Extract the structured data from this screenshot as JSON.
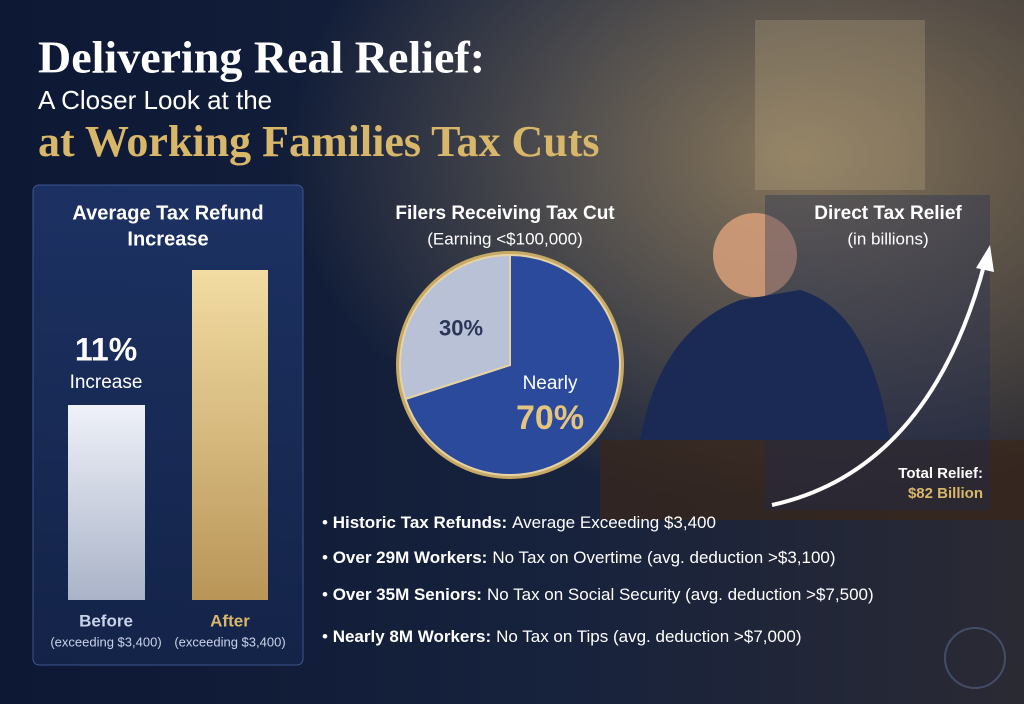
{
  "header": {
    "title": "Delivering Real Relief:",
    "subtitle": "A Closer Look at the",
    "headline": "at Working Families Tax Cuts"
  },
  "refund_panel": {
    "title_line1": "Average Tax Refund",
    "title_line2": "Increase",
    "callout_value": "11%",
    "callout_label": "Increase",
    "bars": [
      {
        "label": "Before",
        "note": "(exceeding $3,400)"
      },
      {
        "label": "After",
        "note": "(exceeding $3,400)"
      }
    ]
  },
  "chart_data": {
    "type": "pie",
    "title": "Filers Receiving Tax Cut",
    "subtitle": "(Earning <$100,000)",
    "values": [
      30,
      70
    ],
    "value_labels": [
      "30%",
      "70%"
    ],
    "colors": [
      "#b9c1d6",
      "#2b4a9c"
    ],
    "annotation": "Nearly"
  },
  "relief_panel": {
    "title": "Direct Tax Relief",
    "subtitle": "(in billions)",
    "total_label": "Total Relief:",
    "total_value": "$82 Billion"
  },
  "bullets": [
    {
      "bold": "Historic Tax Refunds:",
      "text": "Average Exceeding $3,400"
    },
    {
      "bold": "Over 29M Workers:",
      "text": "No Tax on Overtime (avg. deduction >$3,100)"
    },
    {
      "bold": "Over 35M Seniors:",
      "text": "No Tax on Social Security (avg. deduction >$7,500)"
    },
    {
      "bold": "Nearly 8M Workers:",
      "text": "No Tax on Tips (avg. deduction >$7,000)"
    }
  ]
}
